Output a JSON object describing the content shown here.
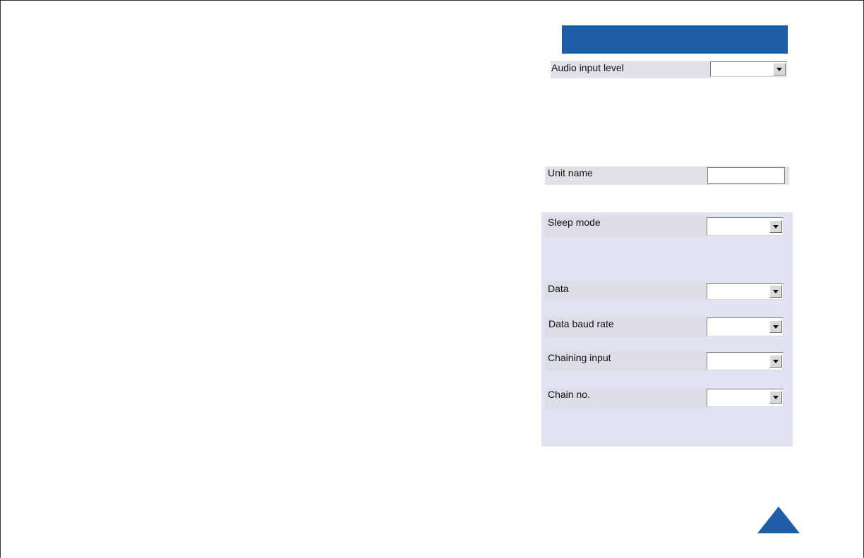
{
  "settings": {
    "audio_input_level": {
      "label": "Audio input level",
      "value": ""
    },
    "unit_name": {
      "label": "Unit name",
      "value": ""
    },
    "sleep_mode": {
      "label": "Sleep mode",
      "value": ""
    },
    "data": {
      "label": "Data",
      "value": ""
    },
    "data_baud_rate": {
      "label": "Data baud rate",
      "value": ""
    },
    "chaining_input": {
      "label": "Chaining input",
      "value": ""
    },
    "chain_no": {
      "label": "Chain no.",
      "value": ""
    }
  },
  "colors": {
    "header_blue": "#1e5ea6",
    "panel_bg": "#e0e3f1",
    "row_bg": "#e2e2e6"
  },
  "icons": {
    "dropdown": "chevron-down-icon",
    "navigation": "up-triangle-icon"
  }
}
